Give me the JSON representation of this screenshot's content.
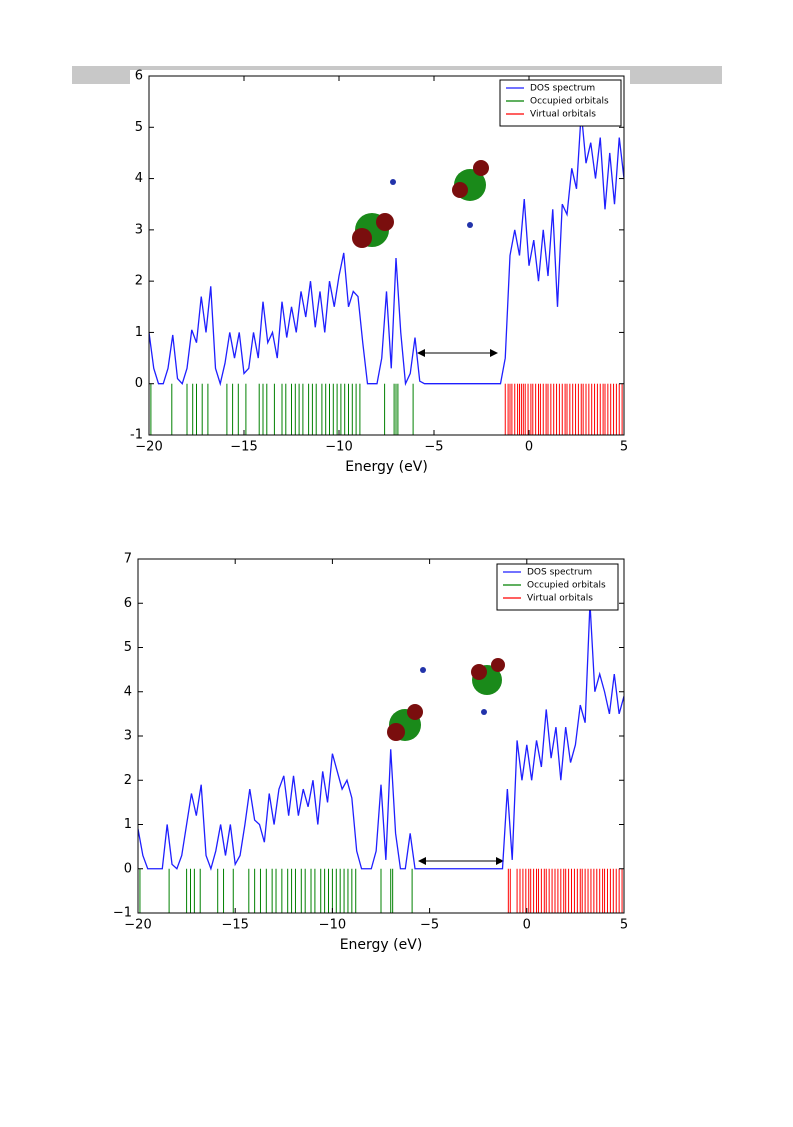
{
  "chart_data": [
    {
      "type": "line",
      "xlabel": "Energy (eV)",
      "xlim": [
        -20,
        5
      ],
      "ylim": [
        -1,
        6
      ],
      "xticks": [
        {
          "value": -20,
          "label": "−20"
        },
        {
          "value": -15,
          "label": "−15"
        },
        {
          "value": -10,
          "label": "−10"
        },
        {
          "value": -5,
          "label": "−5"
        },
        0,
        5
      ],
      "yticks": [
        {
          "value": -1,
          "label": "-1"
        },
        0,
        1,
        2,
        3,
        4,
        5,
        6
      ],
      "legend": "upper right",
      "series": [
        {
          "name": "DOS spectrum",
          "color": "#1f1fff",
          "x": [
            -20,
            -19.75,
            -19.5,
            -19.25,
            -19,
            -18.75,
            -18.5,
            -18.25,
            -18,
            -17.75,
            -17.5,
            -17.25,
            -17,
            -16.75,
            -16.5,
            -16.25,
            -16,
            -15.75,
            -15.5,
            -15.25,
            -15,
            -14.75,
            -14.5,
            -14.25,
            -14,
            -13.75,
            -13.5,
            -13.25,
            -13,
            -12.75,
            -12.5,
            -12.25,
            -12,
            -11.75,
            -11.5,
            -11.25,
            -11,
            -10.75,
            -10.5,
            -10.25,
            -10,
            -9.75,
            -9.5,
            -9.25,
            -9,
            -8.75,
            -8.5,
            -8.25,
            -8,
            -7.75,
            -7.5,
            -7.25,
            -7,
            -6.75,
            -6.5,
            -6.25,
            -6,
            -5.75,
            -5.5,
            -5.25,
            -5,
            -4.75,
            -4.5,
            -4.25,
            -4,
            -3.75,
            -3.5,
            -3.25,
            -3,
            -2.75,
            -2.5,
            -2.25,
            -2,
            -1.75,
            -1.5,
            -1.25,
            -1,
            -0.75,
            -0.5,
            -0.25,
            0,
            0.25,
            0.5,
            0.75,
            1,
            1.25,
            1.5,
            1.75,
            2,
            2.25,
            2.5,
            2.75,
            3,
            3.25,
            3.5,
            3.75,
            4,
            4.25,
            4.5,
            4.75,
            5
          ],
          "values": [
            1.0,
            0.3,
            0,
            0,
            0.3,
            0.95,
            0.1,
            0,
            0.3,
            1.05,
            0.8,
            1.7,
            1.0,
            1.9,
            0.3,
            0,
            0.4,
            1.0,
            0.5,
            1.0,
            0.2,
            0.3,
            1.0,
            0.5,
            1.6,
            0.8,
            1.0,
            0.5,
            1.6,
            0.9,
            1.5,
            1.0,
            1.8,
            1.3,
            2.0,
            1.1,
            1.8,
            1.0,
            2.0,
            1.5,
            2.1,
            2.55,
            1.5,
            1.8,
            1.7,
            0.8,
            0,
            0,
            0,
            0.5,
            1.8,
            0.3,
            2.45,
            1.0,
            0,
            0.2,
            0.9,
            0.05,
            0,
            0,
            0,
            0,
            0,
            0,
            0,
            0,
            0,
            0,
            0,
            0,
            0,
            0,
            0,
            0,
            0,
            0.5,
            2.5,
            3.0,
            2.5,
            3.6,
            2.3,
            2.8,
            2.0,
            3.0,
            2.1,
            3.4,
            1.5,
            3.5,
            3.3,
            4.2,
            3.8,
            5.3,
            4.3,
            4.7,
            4.0,
            4.8,
            3.4,
            4.5,
            3.5,
            4.8,
            4.0
          ]
        },
        {
          "name": "Occupied orbitals",
          "color": "#008000",
          "x": [
            -19.9,
            -18.8,
            -18.0,
            -17.7,
            -17.5,
            -17.2,
            -16.9,
            -15.9,
            -15.6,
            -15.3,
            -14.9,
            -14.2,
            -14.0,
            -13.8,
            -13.4,
            -13.0,
            -12.8,
            -12.5,
            -12.3,
            -12.1,
            -11.9,
            -11.6,
            -11.4,
            -11.2,
            -10.9,
            -10.7,
            -10.5,
            -10.3,
            -10.1,
            -9.9,
            -9.7,
            -9.5,
            -9.3,
            -9.1,
            -8.9,
            -7.6,
            -7.1,
            -7.0,
            -6.9,
            -6.1
          ]
        },
        {
          "name": "Virtual orbitals",
          "color": "#ff0000",
          "x": [
            -1.25,
            -1.1,
            -1.0,
            -0.9,
            -0.75,
            -0.6,
            -0.5,
            -0.4,
            -0.3,
            -0.2,
            -0.05,
            0.1,
            0.2,
            0.35,
            0.5,
            0.6,
            0.75,
            0.9,
            1.0,
            1.15,
            1.3,
            1.45,
            1.6,
            1.75,
            1.9,
            2.0,
            2.15,
            2.3,
            2.45,
            2.6,
            2.75,
            2.85,
            3.0,
            3.15,
            3.3,
            3.45,
            3.6,
            3.75,
            3.9,
            4.0,
            4.15,
            4.3,
            4.45,
            4.6,
            4.75,
            4.9
          ]
        }
      ]
    },
    {
      "type": "line",
      "xlabel": "Energy (eV)",
      "xlim": [
        -20,
        5
      ],
      "ylim": [
        -1,
        7
      ],
      "xticks": [
        {
          "value": -20,
          "label": "−20"
        },
        {
          "value": -15,
          "label": "−15"
        },
        {
          "value": -10,
          "label": "−10"
        },
        {
          "value": -5,
          "label": "−5"
        },
        0,
        5
      ],
      "yticks": [
        {
          "value": -1,
          "label": "−1"
        },
        0,
        1,
        2,
        3,
        4,
        5,
        6,
        7
      ],
      "legend": "upper right",
      "series": [
        {
          "name": "DOS spectrum",
          "color": "#1f1fff",
          "x": [
            -20,
            -19.75,
            -19.5,
            -19.25,
            -19,
            -18.75,
            -18.5,
            -18.25,
            -18,
            -17.75,
            -17.5,
            -17.25,
            -17,
            -16.75,
            -16.5,
            -16.25,
            -16,
            -15.75,
            -15.5,
            -15.25,
            -15,
            -14.75,
            -14.5,
            -14.25,
            -14,
            -13.75,
            -13.5,
            -13.25,
            -13,
            -12.75,
            -12.5,
            -12.25,
            -12,
            -11.75,
            -11.5,
            -11.25,
            -11,
            -10.75,
            -10.5,
            -10.25,
            -10,
            -9.75,
            -9.5,
            -9.25,
            -9,
            -8.75,
            -8.5,
            -8.25,
            -8,
            -7.75,
            -7.5,
            -7.25,
            -7,
            -6.75,
            -6.5,
            -6.25,
            -6,
            -5.75,
            -5.5,
            -5.25,
            -5,
            -4.75,
            -4.5,
            -4.25,
            -4,
            -3.75,
            -3.5,
            -3.25,
            -3,
            -2.75,
            -2.5,
            -2.25,
            -2,
            -1.75,
            -1.5,
            -1.25,
            -1,
            -0.75,
            -0.5,
            -0.25,
            0,
            0.25,
            0.5,
            0.75,
            1,
            1.25,
            1.5,
            1.75,
            2,
            2.25,
            2.5,
            2.75,
            3,
            3.25,
            3.5,
            3.75,
            4,
            4.25,
            4.5,
            4.75,
            5
          ],
          "values": [
            0.9,
            0.3,
            0,
            0,
            0,
            0,
            1.0,
            0.1,
            0,
            0.3,
            1.0,
            1.7,
            1.2,
            1.9,
            0.3,
            0,
            0.4,
            1.0,
            0.3,
            1.0,
            0.1,
            0.3,
            1.0,
            1.8,
            1.1,
            1.0,
            0.6,
            1.7,
            1.0,
            1.8,
            2.1,
            1.2,
            2.1,
            1.2,
            1.8,
            1.4,
            2.0,
            1.0,
            2.2,
            1.5,
            2.6,
            2.2,
            1.8,
            2.0,
            1.6,
            0.4,
            0,
            0,
            0,
            0.4,
            1.9,
            0.2,
            2.7,
            0.8,
            0,
            0,
            0.8,
            0,
            0,
            0,
            0,
            0,
            0,
            0,
            0,
            0,
            0,
            0,
            0,
            0,
            0,
            0,
            0,
            0,
            0,
            0,
            1.8,
            0.2,
            2.9,
            2.0,
            2.8,
            2.0,
            2.9,
            2.3,
            3.6,
            2.5,
            3.2,
            2.0,
            3.2,
            2.4,
            2.8,
            3.7,
            3.3,
            6.0,
            4.0,
            4.4,
            4.0,
            3.5,
            4.4,
            3.5,
            3.9
          ]
        },
        {
          "name": "Occupied orbitals",
          "color": "#008000",
          "x": [
            -19.9,
            -18.4,
            -17.5,
            -17.3,
            -17.1,
            -16.8,
            -15.9,
            -15.6,
            -15.1,
            -14.3,
            -14.0,
            -13.7,
            -13.4,
            -13.1,
            -12.9,
            -12.6,
            -12.3,
            -12.1,
            -11.9,
            -11.6,
            -11.4,
            -11.1,
            -10.9,
            -10.6,
            -10.4,
            -10.2,
            -10.0,
            -9.8,
            -9.6,
            -9.4,
            -9.2,
            -9.0,
            -8.8,
            -7.5,
            -7.0,
            -6.9,
            -5.9
          ]
        },
        {
          "name": "Virtual orbitals",
          "color": "#ff0000",
          "x": [
            -0.95,
            -0.85,
            -0.5,
            -0.35,
            -0.2,
            -0.05,
            0.1,
            0.2,
            0.35,
            0.5,
            0.6,
            0.75,
            0.9,
            1.0,
            1.15,
            1.3,
            1.45,
            1.6,
            1.75,
            1.9,
            2.0,
            2.15,
            2.3,
            2.45,
            2.6,
            2.75,
            2.85,
            3.0,
            3.15,
            3.3,
            3.45,
            3.6,
            3.75,
            3.9,
            4.0,
            4.15,
            4.3,
            4.45,
            4.6,
            4.75,
            4.9
          ]
        }
      ]
    }
  ]
}
